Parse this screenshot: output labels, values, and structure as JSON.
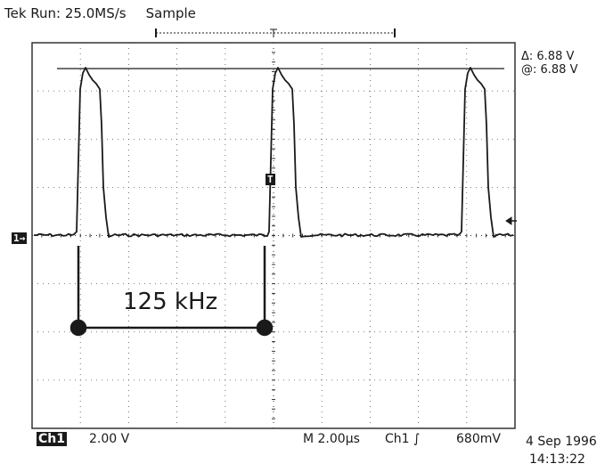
{
  "header": {
    "status": "Tek Run: 25.0MS/s",
    "mode": "Sample"
  },
  "readouts": {
    "delta": "Δ: 6.88 V",
    "at": "@: 6.88 V"
  },
  "markers": {
    "ch1": "1→",
    "trigger": "T"
  },
  "annotation": {
    "frequency": "125 kHz"
  },
  "footer": {
    "channel": "Ch1",
    "volts_per_div": "2.00 V",
    "timebase": "M 2.00µs",
    "trigger_source": "Ch1 ∫",
    "trigger_level": "680mV",
    "date": "4 Sep 1996",
    "time": "14:13:22"
  },
  "colors": {
    "trace": "#1a1a1a",
    "grid": "#333333",
    "background": "#ffffff"
  }
}
